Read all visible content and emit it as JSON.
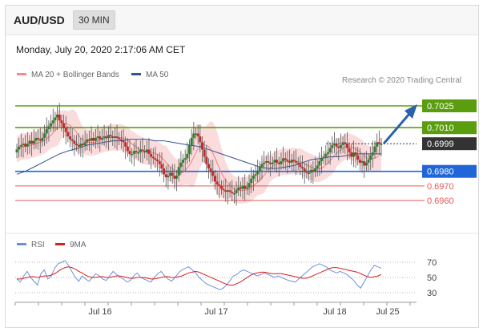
{
  "header": {
    "pair": "AUD/USD",
    "timeframe": "30 MIN"
  },
  "timestamp": "Monday, July 20, 2020 2:17:06 AM CET",
  "legend": [
    {
      "label": "MA 20 + Bollinger Bands",
      "color": "#f28b8b"
    },
    {
      "label": "MA 50",
      "color": "#2f5597"
    }
  ],
  "research": "Research © 2020 Trading Central",
  "rsi_legend": [
    {
      "label": "RSI",
      "color": "#6f8fdc"
    },
    {
      "label": "9MA",
      "color": "#d62020"
    }
  ],
  "chart_data": [
    {
      "type": "candlestick",
      "title": "AUD/USD 30 MIN",
      "xlabel": "",
      "ylabel": "",
      "x_ticks": [
        "Jul 16",
        "Jul 17",
        "Jul 18",
        "Jul 25"
      ],
      "ylim": [
        0.6955,
        0.7035
      ],
      "last_price": "0.6999",
      "levels": [
        {
          "label": "0.7025",
          "value": 0.7025,
          "kind": "target",
          "color": "#5a9e0f"
        },
        {
          "label": "0.7010",
          "value": 0.701,
          "kind": "resistance",
          "color": "#5a9e0f"
        },
        {
          "label": "0.6980",
          "value": 0.698,
          "kind": "pivot",
          "color": "#2166d8"
        },
        {
          "label": "0.6970",
          "value": 0.697,
          "kind": "support",
          "color": "#e05a5a"
        },
        {
          "label": "0.6960",
          "value": 0.696,
          "kind": "support",
          "color": "#e05a5a"
        }
      ],
      "close_series": [
        0.6995,
        0.6997,
        0.6998,
        0.6999,
        0.6997,
        0.6999,
        0.7001,
        0.6999,
        0.7001,
        0.7003,
        0.7002,
        0.7001,
        0.7003,
        0.7006,
        0.7009,
        0.7011,
        0.7013,
        0.7015,
        0.7017,
        0.7019,
        0.7015,
        0.7013,
        0.701,
        0.7007,
        0.7004,
        0.7002,
        0.7001,
        0.6999,
        0.6998,
        0.6997,
        0.6999,
        0.6998,
        0.7,
        0.7002,
        0.7001,
        0.7003,
        0.7001,
        0.7003,
        0.7004,
        0.7002,
        0.7003,
        0.7004,
        0.7003,
        0.7005,
        0.7004,
        0.7003,
        0.7004,
        0.7003,
        0.7002,
        0.7001,
        0.7,
        0.6997,
        0.6994,
        0.6992,
        0.6992,
        0.6994,
        0.6993,
        0.6993,
        0.6995,
        0.6994,
        0.6993,
        0.6995,
        0.6992,
        0.699,
        0.6989,
        0.6988,
        0.6987,
        0.6985,
        0.6982,
        0.6978,
        0.6976,
        0.6977,
        0.6979,
        0.6977,
        0.6975,
        0.6977,
        0.6983,
        0.6986,
        0.6988,
        0.6989,
        0.6992,
        0.6998,
        0.7003,
        0.7006,
        0.7006,
        0.7004,
        0.7,
        0.6995,
        0.699,
        0.6985,
        0.6982,
        0.698,
        0.6977,
        0.6973,
        0.6971,
        0.697,
        0.6968,
        0.6967,
        0.6966,
        0.6967,
        0.6966,
        0.6965,
        0.6965,
        0.6967,
        0.6969,
        0.6968,
        0.697,
        0.6968,
        0.6969,
        0.6972,
        0.6975,
        0.6977,
        0.6978,
        0.698,
        0.6983,
        0.6985,
        0.6986,
        0.6987,
        0.6986,
        0.6985,
        0.6986,
        0.6988,
        0.6986,
        0.6985,
        0.6987,
        0.6989,
        0.6988,
        0.6987,
        0.6986,
        0.6988,
        0.6987,
        0.6986,
        0.6985,
        0.6983,
        0.6982,
        0.698,
        0.6979,
        0.6979,
        0.6981,
        0.698,
        0.6982,
        0.6984,
        0.6987,
        0.6989,
        0.699,
        0.6992,
        0.6993,
        0.6996,
        0.6998,
        0.6999,
        0.6997,
        0.6996,
        0.6998,
        0.7,
        0.6999,
        0.6996,
        0.6993,
        0.699,
        0.6993,
        0.6991,
        0.6988,
        0.6986,
        0.6987,
        0.6984,
        0.6986,
        0.6988,
        0.6991,
        0.6993,
        0.6997,
        0.7,
        0.6999,
        0.6999
      ],
      "ma50_series": [
        0.6978,
        0.698,
        0.6983,
        0.6986,
        0.6989,
        0.6992,
        0.6994,
        0.6996,
        0.6998,
        0.6999,
        0.7,
        0.7001,
        0.7001,
        0.7002,
        0.7002,
        0.7002,
        0.7001,
        0.7001,
        0.7,
        0.6999,
        0.6998,
        0.6997,
        0.6995,
        0.6993,
        0.6991,
        0.6989,
        0.6987,
        0.6985,
        0.6983,
        0.6982,
        0.6982,
        0.6983,
        0.6984,
        0.6986,
        0.6988,
        0.6989,
        0.699,
        0.699,
        0.6991,
        0.6992,
        0.6992,
        0.6992,
        0.6992
      ],
      "rsi": {
        "ylim": [
          20,
          80
        ],
        "levels": [
          70,
          50,
          30
        ],
        "rsi_series": [
          48,
          44,
          52,
          58,
          50,
          45,
          40,
          55,
          60,
          48,
          52,
          62,
          68,
          70,
          72,
          66,
          58,
          50,
          45,
          52,
          48,
          45,
          50,
          55,
          52,
          48,
          46,
          52,
          58,
          54,
          50,
          48,
          44,
          46,
          52,
          56,
          50,
          48,
          46,
          44,
          50,
          55,
          58,
          52,
          48,
          45,
          50,
          56,
          60,
          62,
          64,
          60,
          56,
          50,
          46,
          42,
          40,
          38,
          36,
          34,
          36,
          40,
          46,
          52,
          54,
          58,
          60,
          58,
          56,
          54,
          52,
          54,
          56,
          54,
          52,
          50,
          52,
          50,
          48,
          46,
          45,
          44,
          48,
          52,
          56,
          60,
          64,
          66,
          68,
          66,
          64,
          60,
          58,
          56,
          58,
          56,
          54,
          50,
          46,
          40,
          36,
          44,
          52,
          60,
          66,
          64,
          62
        ],
        "ma_series": [
          48,
          48,
          49,
          50,
          51,
          51,
          50,
          51,
          52,
          52,
          53,
          55,
          58,
          61,
          63,
          64,
          63,
          61,
          58,
          56,
          53,
          51,
          50,
          50,
          51,
          51,
          50,
          50,
          51,
          52,
          52,
          51,
          50,
          49,
          49,
          50,
          50,
          50,
          49,
          48,
          48,
          49,
          50,
          51,
          51,
          50,
          50,
          51,
          52,
          54,
          56,
          57,
          58,
          57,
          55,
          53,
          51,
          49,
          47,
          45,
          43,
          41,
          40,
          40,
          42,
          44,
          47,
          50,
          53,
          55,
          56,
          57,
          57,
          56,
          55,
          55,
          55,
          55,
          54,
          53,
          52,
          51,
          50,
          49,
          49,
          50,
          52,
          54,
          56,
          58,
          60,
          62,
          63,
          63,
          62,
          61,
          60,
          59,
          58,
          57,
          55,
          53,
          51,
          50,
          51,
          52,
          54
        ]
      }
    }
  ]
}
